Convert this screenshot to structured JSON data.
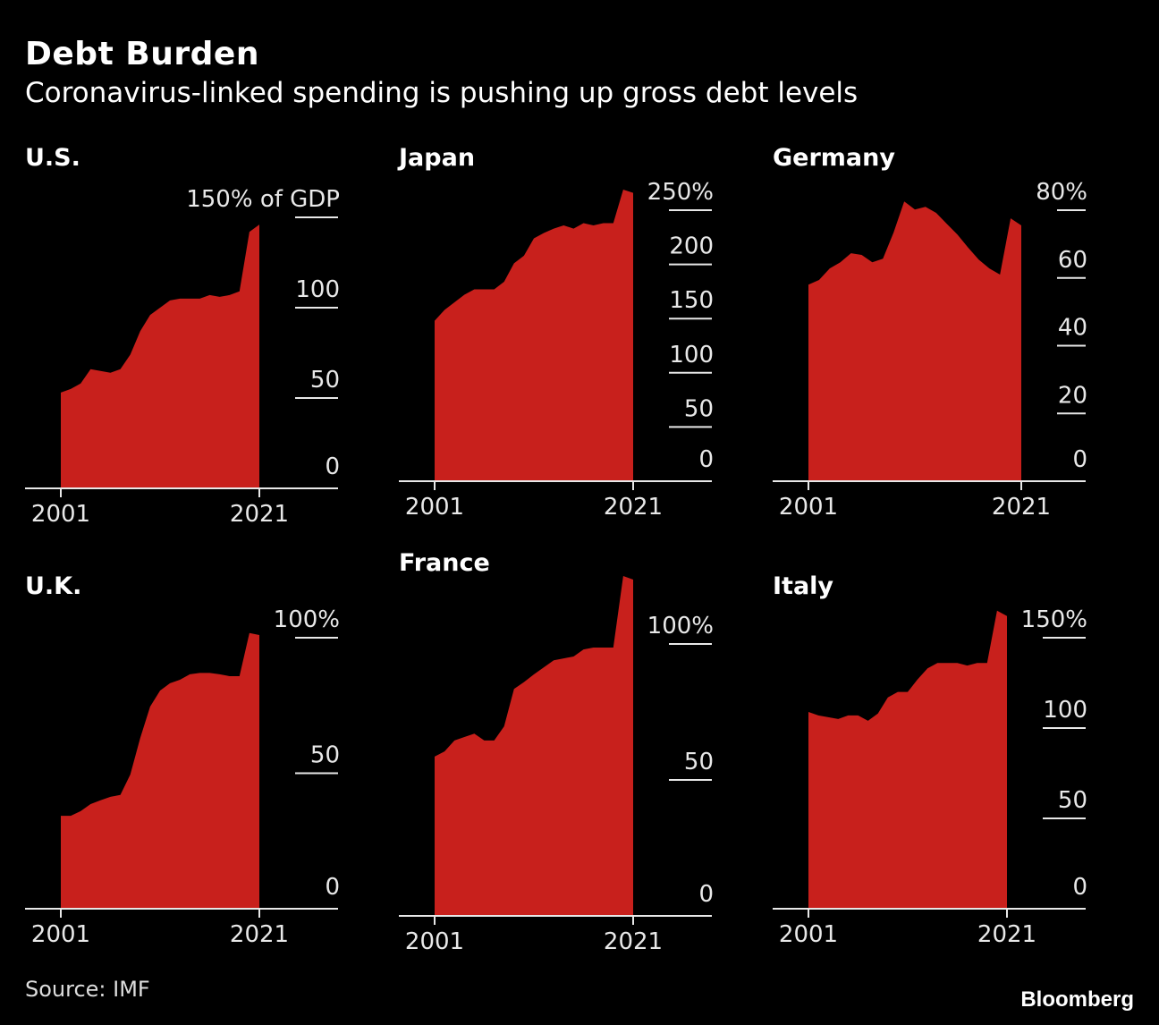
{
  "title": "Debt Burden",
  "subtitle": "Coronavirus-linked spending is pushing up gross debt levels",
  "source": "Source: IMF",
  "brand": "Bloomberg",
  "colors": {
    "fill": "#c8201c",
    "background": "#000000",
    "axis": "#e8e8e8"
  },
  "chart_data": [
    {
      "type": "area",
      "title": "U.S.",
      "x": [
        2001,
        2002,
        2003,
        2004,
        2005,
        2006,
        2007,
        2008,
        2009,
        2010,
        2011,
        2012,
        2013,
        2014,
        2015,
        2016,
        2017,
        2018,
        2019,
        2020,
        2021
      ],
      "values": [
        53,
        55,
        58,
        66,
        65,
        64,
        66,
        74,
        87,
        96,
        100,
        104,
        105,
        105,
        105,
        107,
        106,
        107,
        109,
        142,
        146
      ],
      "y_ticks": [
        0,
        50,
        100,
        150
      ],
      "y_tick_labels": [
        "0",
        "50",
        "100",
        "150% of GDP"
      ],
      "x_tick_labels": [
        "2001",
        "2021"
      ],
      "ylim": [
        0,
        150
      ]
    },
    {
      "type": "area",
      "title": "Japan",
      "x": [
        2001,
        2002,
        2003,
        2004,
        2005,
        2006,
        2007,
        2008,
        2009,
        2010,
        2011,
        2012,
        2013,
        2014,
        2015,
        2016,
        2017,
        2018,
        2019,
        2020,
        2021
      ],
      "values": [
        148,
        158,
        165,
        172,
        177,
        177,
        177,
        184,
        201,
        208,
        224,
        229,
        233,
        236,
        233,
        238,
        236,
        238,
        238,
        269,
        266
      ],
      "y_ticks": [
        0,
        50,
        100,
        150,
        200,
        250
      ],
      "y_tick_labels": [
        "0",
        "50",
        "100",
        "150",
        "200",
        "250%"
      ],
      "x_tick_labels": [
        "2001",
        "2021"
      ],
      "ylim": [
        0,
        250
      ]
    },
    {
      "type": "area",
      "title": "Germany",
      "x": [
        2001,
        2002,
        2003,
        2004,
        2005,
        2006,
        2007,
        2008,
        2009,
        2010,
        2011,
        2012,
        2013,
        2014,
        2015,
        2016,
        2017,
        2018,
        2019,
        2020,
        2021
      ],
      "values": [
        58,
        59.4,
        62.8,
        64.6,
        67.3,
        66.8,
        64.6,
        65.7,
        73.4,
        82.6,
        80.2,
        81,
        79.2,
        76,
        72.8,
        69,
        65.4,
        62.8,
        61,
        77.6,
        75.5
      ],
      "y_ticks": [
        0,
        20,
        40,
        60,
        80
      ],
      "y_tick_labels": [
        "0",
        "20",
        "40",
        "60",
        "80%"
      ],
      "x_tick_labels": [
        "2001",
        "2021"
      ],
      "ylim": [
        0,
        80
      ]
    },
    {
      "type": "area",
      "title": "U.K.",
      "x": [
        2001,
        2002,
        2003,
        2004,
        2005,
        2006,
        2007,
        2008,
        2009,
        2010,
        2011,
        2012,
        2013,
        2014,
        2015,
        2016,
        2017,
        2018,
        2019,
        2020,
        2021
      ],
      "values": [
        34.3,
        34.3,
        36,
        38.6,
        40,
        41.3,
        42,
        49.5,
        63,
        74.6,
        80.5,
        83.2,
        84.5,
        86.5,
        87,
        87,
        86.5,
        85.8,
        85.8,
        101.7,
        101
      ],
      "y_ticks": [
        0,
        50,
        100
      ],
      "y_tick_labels": [
        "0",
        "50",
        "100%"
      ],
      "x_tick_labels": [
        "2001",
        "2021"
      ],
      "ylim": [
        0,
        100
      ]
    },
    {
      "type": "area",
      "title": "France",
      "x": [
        2001,
        2002,
        2003,
        2004,
        2005,
        2006,
        2007,
        2008,
        2009,
        2010,
        2011,
        2012,
        2013,
        2014,
        2015,
        2016,
        2017,
        2018,
        2019,
        2020,
        2021
      ],
      "values": [
        58.6,
        60.5,
        64.5,
        65.8,
        67,
        64.5,
        64.5,
        69.7,
        83.5,
        86,
        88.8,
        91.4,
        94,
        94.7,
        95.4,
        98,
        98.7,
        98.7,
        98.7,
        125,
        123.7
      ],
      "y_ticks": [
        0,
        50,
        100
      ],
      "y_tick_labels": [
        "0",
        "50",
        "100%"
      ],
      "x_tick_labels": [
        "2001",
        "2021"
      ],
      "ylim": [
        0,
        100
      ]
    },
    {
      "type": "area",
      "title": "Italy",
      "x": [
        2001,
        2002,
        2003,
        2004,
        2005,
        2006,
        2007,
        2008,
        2009,
        2010,
        2011,
        2012,
        2013,
        2014,
        2015,
        2016,
        2017,
        2018,
        2019,
        2020,
        2021
      ],
      "values": [
        108.9,
        107,
        106,
        105,
        107,
        107,
        104,
        108,
        117,
        120,
        120,
        127,
        133,
        136,
        136,
        136,
        134.6,
        136,
        136,
        165,
        162
      ],
      "y_ticks": [
        0,
        50,
        100,
        150
      ],
      "y_tick_labels": [
        "0",
        "50",
        "100",
        "150%"
      ],
      "x_tick_labels": [
        "2001",
        "2021"
      ],
      "ylim": [
        0,
        150
      ]
    }
  ]
}
